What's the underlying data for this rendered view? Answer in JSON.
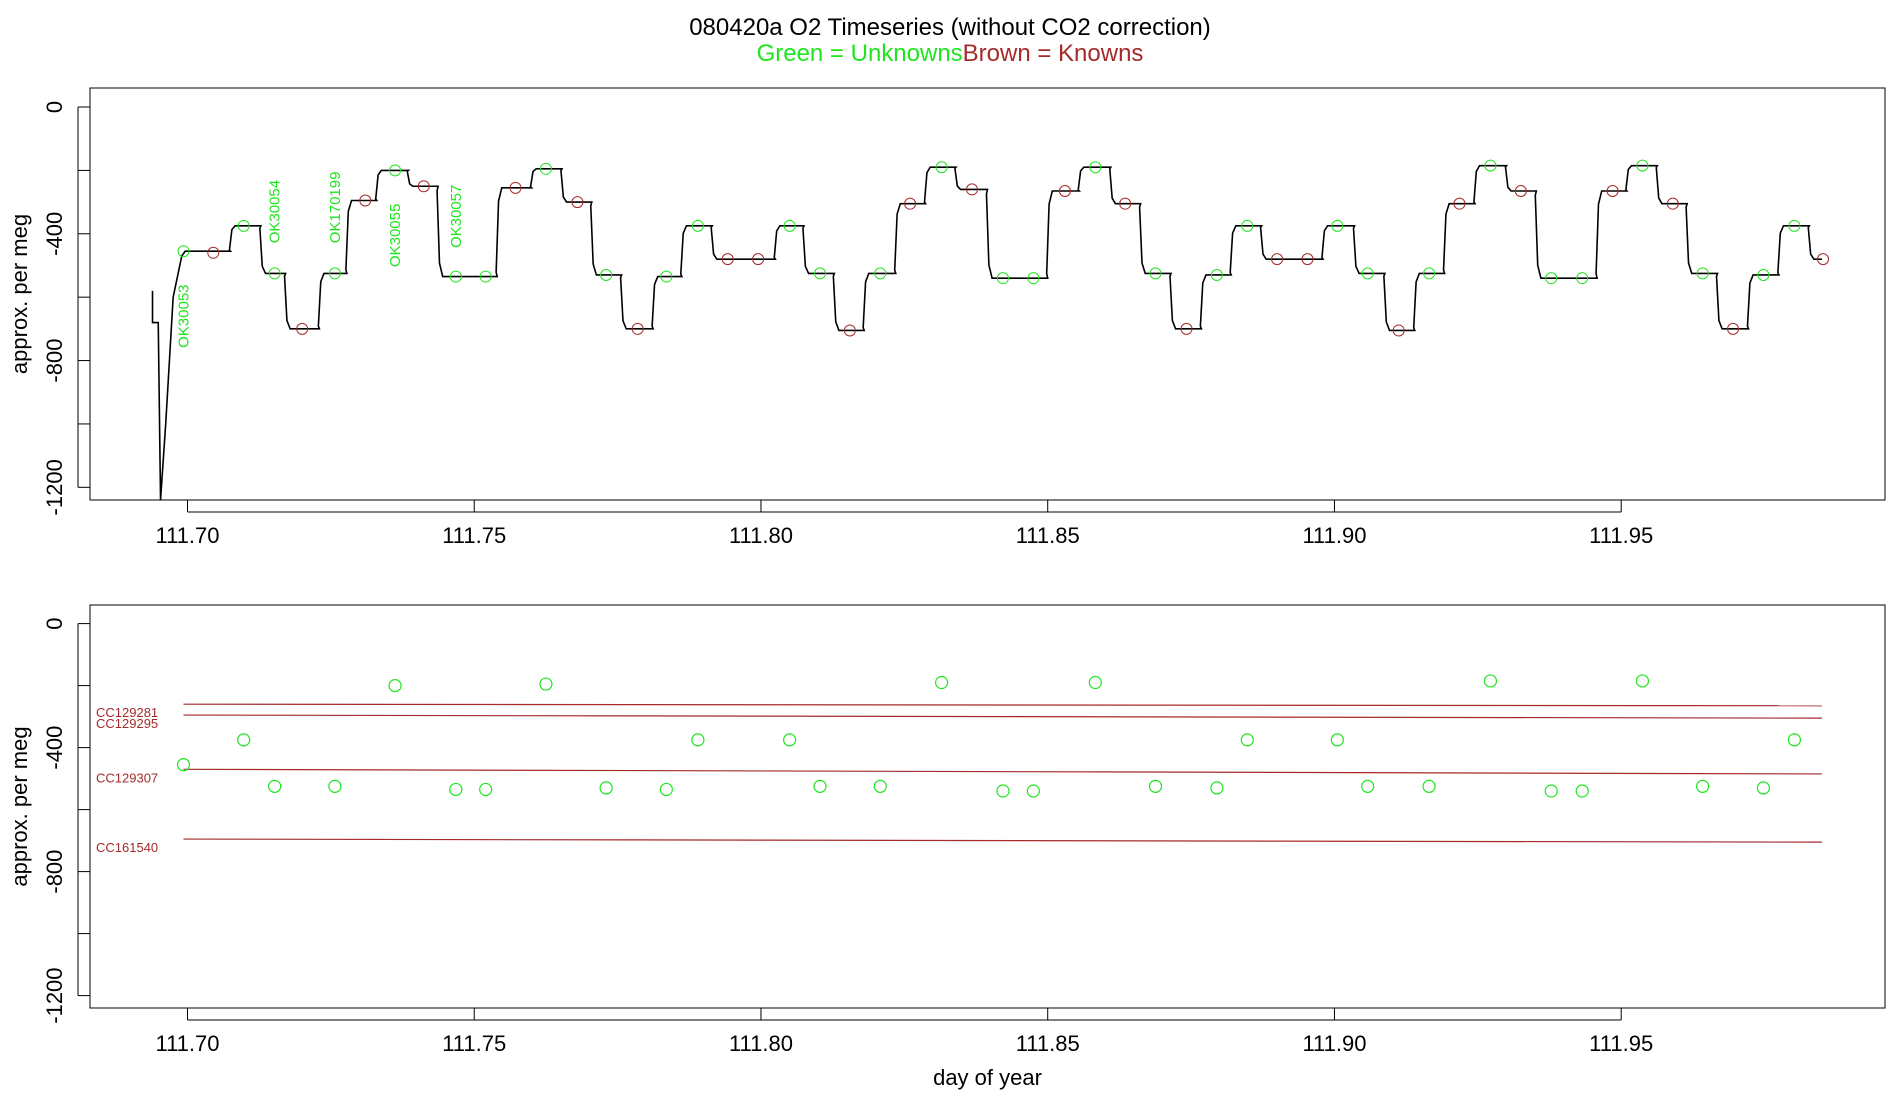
{
  "title": {
    "main": "080420a   O2 Timeseries (without CO2 correction)",
    "legend_green": "Green = Unknowns",
    "legend_brown": "Brown = Knowns"
  },
  "colors": {
    "unknown": "#1ee61e",
    "known": "#a52a2a",
    "series": "#000000"
  },
  "chart_data": [
    {
      "type": "line",
      "title": "080420a   O2 Timeseries (without CO2 correction)",
      "ylabel": "approx. per meg",
      "xlabel": "",
      "xlim": [
        111.683,
        111.996
      ],
      "ylim": [
        -1240,
        60
      ],
      "xticks": [
        "111.70",
        "111.75",
        "111.80",
        "111.85",
        "111.90",
        "111.95"
      ],
      "yticks": [
        "0",
        "-400",
        "-800",
        "-1200"
      ],
      "steps": [
        {
          "x0": 111.6996,
          "x1": 111.7075,
          "y": -455
        },
        {
          "x0": 111.7075,
          "x1": 111.7128,
          "y": -375
        },
        {
          "x0": 111.7128,
          "x1": 111.7171,
          "y": -525
        },
        {
          "x0": 111.7171,
          "x1": 111.723,
          "y": -700
        },
        {
          "x0": 111.723,
          "x1": 111.7278,
          "y": -525
        },
        {
          "x0": 111.7278,
          "x1": 111.733,
          "y": -295
        },
        {
          "x0": 111.733,
          "x1": 111.7385,
          "y": -200
        },
        {
          "x0": 111.7385,
          "x1": 111.7437,
          "y": -250
        },
        {
          "x0": 111.7437,
          "x1": 111.754,
          "y": -535
        },
        {
          "x0": 111.754,
          "x1": 111.76,
          "y": -255
        },
        {
          "x0": 111.76,
          "x1": 111.7653,
          "y": -195
        },
        {
          "x0": 111.7653,
          "x1": 111.7705,
          "y": -300
        },
        {
          "x0": 111.7705,
          "x1": 111.7757,
          "y": -530
        },
        {
          "x0": 111.7757,
          "x1": 111.7812,
          "y": -700
        },
        {
          "x0": 111.7812,
          "x1": 111.7862,
          "y": -535
        },
        {
          "x0": 111.7862,
          "x1": 111.7915,
          "y": -375
        },
        {
          "x0": 111.7915,
          "x1": 111.8025,
          "y": -480
        },
        {
          "x0": 111.8025,
          "x1": 111.8075,
          "y": -375
        },
        {
          "x0": 111.8075,
          "x1": 111.8128,
          "y": -525
        },
        {
          "x0": 111.8128,
          "x1": 111.818,
          "y": -705
        },
        {
          "x0": 111.818,
          "x1": 111.8235,
          "y": -525
        },
        {
          "x0": 111.8235,
          "x1": 111.8287,
          "y": -305
        },
        {
          "x0": 111.8287,
          "x1": 111.834,
          "y": -190
        },
        {
          "x0": 111.834,
          "x1": 111.8395,
          "y": -260
        },
        {
          "x0": 111.8395,
          "x1": 111.85,
          "y": -540
        },
        {
          "x0": 111.85,
          "x1": 111.8555,
          "y": -265
        },
        {
          "x0": 111.8555,
          "x1": 111.861,
          "y": -190
        },
        {
          "x0": 111.861,
          "x1": 111.8662,
          "y": -305
        },
        {
          "x0": 111.8662,
          "x1": 111.8715,
          "y": -525
        },
        {
          "x0": 111.8715,
          "x1": 111.8768,
          "y": -700
        },
        {
          "x0": 111.8768,
          "x1": 111.882,
          "y": -530
        },
        {
          "x0": 111.882,
          "x1": 111.8873,
          "y": -375
        },
        {
          "x0": 111.8873,
          "x1": 111.898,
          "y": -480
        },
        {
          "x0": 111.898,
          "x1": 111.9035,
          "y": -375
        },
        {
          "x0": 111.9035,
          "x1": 111.9088,
          "y": -525
        },
        {
          "x0": 111.9088,
          "x1": 111.914,
          "y": -705
        },
        {
          "x0": 111.914,
          "x1": 111.9192,
          "y": -525
        },
        {
          "x0": 111.9192,
          "x1": 111.9245,
          "y": -305
        },
        {
          "x0": 111.9245,
          "x1": 111.93,
          "y": -185
        },
        {
          "x0": 111.93,
          "x1": 111.9352,
          "y": -265
        },
        {
          "x0": 111.9352,
          "x1": 111.9458,
          "y": -540
        },
        {
          "x0": 111.9458,
          "x1": 111.951,
          "y": -265
        },
        {
          "x0": 111.951,
          "x1": 111.9563,
          "y": -185
        },
        {
          "x0": 111.9563,
          "x1": 111.9615,
          "y": -305
        },
        {
          "x0": 111.9615,
          "x1": 111.9668,
          "y": -525
        },
        {
          "x0": 111.9668,
          "x1": 111.9722,
          "y": -700
        },
        {
          "x0": 111.9722,
          "x1": 111.9775,
          "y": -530
        },
        {
          "x0": 111.9775,
          "x1": 111.9828,
          "y": -375
        },
        {
          "x0": 111.9828,
          "x1": 111.985,
          "y": -480
        }
      ],
      "unknowns": [
        {
          "x": 111.6993,
          "y": -455,
          "label": "OK30053"
        },
        {
          "x": 111.7098,
          "y": -375,
          "label": ""
        },
        {
          "x": 111.7152,
          "y": -525,
          "label": "OK30054"
        },
        {
          "x": 111.7257,
          "y": -525,
          "label": "OK170199"
        },
        {
          "x": 111.7362,
          "y": -200,
          "label": "OK30055"
        },
        {
          "x": 111.7468,
          "y": -535,
          "label": "OK30057"
        },
        {
          "x": 111.752,
          "y": -535,
          "label": ""
        },
        {
          "x": 111.7625,
          "y": -195,
          "label": ""
        },
        {
          "x": 111.773,
          "y": -530,
          "label": ""
        },
        {
          "x": 111.7835,
          "y": -535,
          "label": ""
        },
        {
          "x": 111.789,
          "y": -375,
          "label": ""
        },
        {
          "x": 111.805,
          "y": -375,
          "label": ""
        },
        {
          "x": 111.8103,
          "y": -525,
          "label": ""
        },
        {
          "x": 111.8208,
          "y": -525,
          "label": ""
        },
        {
          "x": 111.8315,
          "y": -190,
          "label": ""
        },
        {
          "x": 111.8422,
          "y": -540,
          "label": ""
        },
        {
          "x": 111.8475,
          "y": -540,
          "label": ""
        },
        {
          "x": 111.8583,
          "y": -190,
          "label": ""
        },
        {
          "x": 111.8688,
          "y": -525,
          "label": ""
        },
        {
          "x": 111.8795,
          "y": -530,
          "label": ""
        },
        {
          "x": 111.8848,
          "y": -375,
          "label": ""
        },
        {
          "x": 111.9005,
          "y": -375,
          "label": ""
        },
        {
          "x": 111.9058,
          "y": -525,
          "label": ""
        },
        {
          "x": 111.9165,
          "y": -525,
          "label": ""
        },
        {
          "x": 111.9272,
          "y": -185,
          "label": ""
        },
        {
          "x": 111.9378,
          "y": -540,
          "label": ""
        },
        {
          "x": 111.9432,
          "y": -540,
          "label": ""
        },
        {
          "x": 111.9537,
          "y": -185,
          "label": ""
        },
        {
          "x": 111.9642,
          "y": -525,
          "label": ""
        },
        {
          "x": 111.9748,
          "y": -530,
          "label": ""
        },
        {
          "x": 111.9802,
          "y": -375,
          "label": ""
        }
      ],
      "knowns": [
        {
          "x": 111.7045,
          "y": -460
        },
        {
          "x": 111.72,
          "y": -700
        },
        {
          "x": 111.731,
          "y": -295
        },
        {
          "x": 111.7412,
          "y": -250
        },
        {
          "x": 111.7572,
          "y": -255
        },
        {
          "x": 111.768,
          "y": -300
        },
        {
          "x": 111.7785,
          "y": -700
        },
        {
          "x": 111.7942,
          "y": -480
        },
        {
          "x": 111.7995,
          "y": -480
        },
        {
          "x": 111.8155,
          "y": -705
        },
        {
          "x": 111.826,
          "y": -305
        },
        {
          "x": 111.8368,
          "y": -260
        },
        {
          "x": 111.853,
          "y": -265
        },
        {
          "x": 111.8635,
          "y": -305
        },
        {
          "x": 111.8742,
          "y": -700
        },
        {
          "x": 111.89,
          "y": -480
        },
        {
          "x": 111.8953,
          "y": -480
        },
        {
          "x": 111.9112,
          "y": -705
        },
        {
          "x": 111.9218,
          "y": -305
        },
        {
          "x": 111.9325,
          "y": -265
        },
        {
          "x": 111.9485,
          "y": -265
        },
        {
          "x": 111.959,
          "y": -305
        },
        {
          "x": 111.9695,
          "y": -700
        },
        {
          "x": 111.9852,
          "y": -480
        }
      ]
    },
    {
      "type": "scatter",
      "ylabel": "approx. per meg",
      "xlabel": "day of year",
      "xlim": [
        111.683,
        111.996
      ],
      "ylim": [
        -1240,
        60
      ],
      "xticks": [
        "111.70",
        "111.75",
        "111.80",
        "111.85",
        "111.90",
        "111.95"
      ],
      "yticks": [
        "0",
        "-400",
        "-800",
        "-1200"
      ],
      "reference_lines": [
        {
          "name": "CC129281",
          "x0": 111.6993,
          "y0": -260,
          "x1": 111.985,
          "y1": -265
        },
        {
          "name": "CC129295",
          "x0": 111.6993,
          "y0": -295,
          "x1": 111.985,
          "y1": -305
        },
        {
          "name": "CC129307",
          "x0": 111.6993,
          "y0": -470,
          "x1": 111.985,
          "y1": -485
        },
        {
          "name": "CC161540",
          "x0": 111.6993,
          "y0": -695,
          "x1": 111.985,
          "y1": -705
        }
      ],
      "points": [
        {
          "x": 111.6993,
          "y": -455
        },
        {
          "x": 111.7098,
          "y": -375
        },
        {
          "x": 111.7152,
          "y": -525
        },
        {
          "x": 111.7257,
          "y": -525
        },
        {
          "x": 111.7362,
          "y": -200
        },
        {
          "x": 111.7468,
          "y": -535
        },
        {
          "x": 111.752,
          "y": -535
        },
        {
          "x": 111.7625,
          "y": -195
        },
        {
          "x": 111.773,
          "y": -530
        },
        {
          "x": 111.7835,
          "y": -535
        },
        {
          "x": 111.789,
          "y": -375
        },
        {
          "x": 111.805,
          "y": -375
        },
        {
          "x": 111.8103,
          "y": -525
        },
        {
          "x": 111.8208,
          "y": -525
        },
        {
          "x": 111.8315,
          "y": -190
        },
        {
          "x": 111.8422,
          "y": -540
        },
        {
          "x": 111.8475,
          "y": -540
        },
        {
          "x": 111.8583,
          "y": -190
        },
        {
          "x": 111.8688,
          "y": -525
        },
        {
          "x": 111.8795,
          "y": -530
        },
        {
          "x": 111.8848,
          "y": -375
        },
        {
          "x": 111.9005,
          "y": -375
        },
        {
          "x": 111.9058,
          "y": -525
        },
        {
          "x": 111.9165,
          "y": -525
        },
        {
          "x": 111.9272,
          "y": -185
        },
        {
          "x": 111.9378,
          "y": -540
        },
        {
          "x": 111.9432,
          "y": -540
        },
        {
          "x": 111.9537,
          "y": -185
        },
        {
          "x": 111.9642,
          "y": -525
        },
        {
          "x": 111.9748,
          "y": -530
        },
        {
          "x": 111.9802,
          "y": -375
        }
      ]
    }
  ]
}
